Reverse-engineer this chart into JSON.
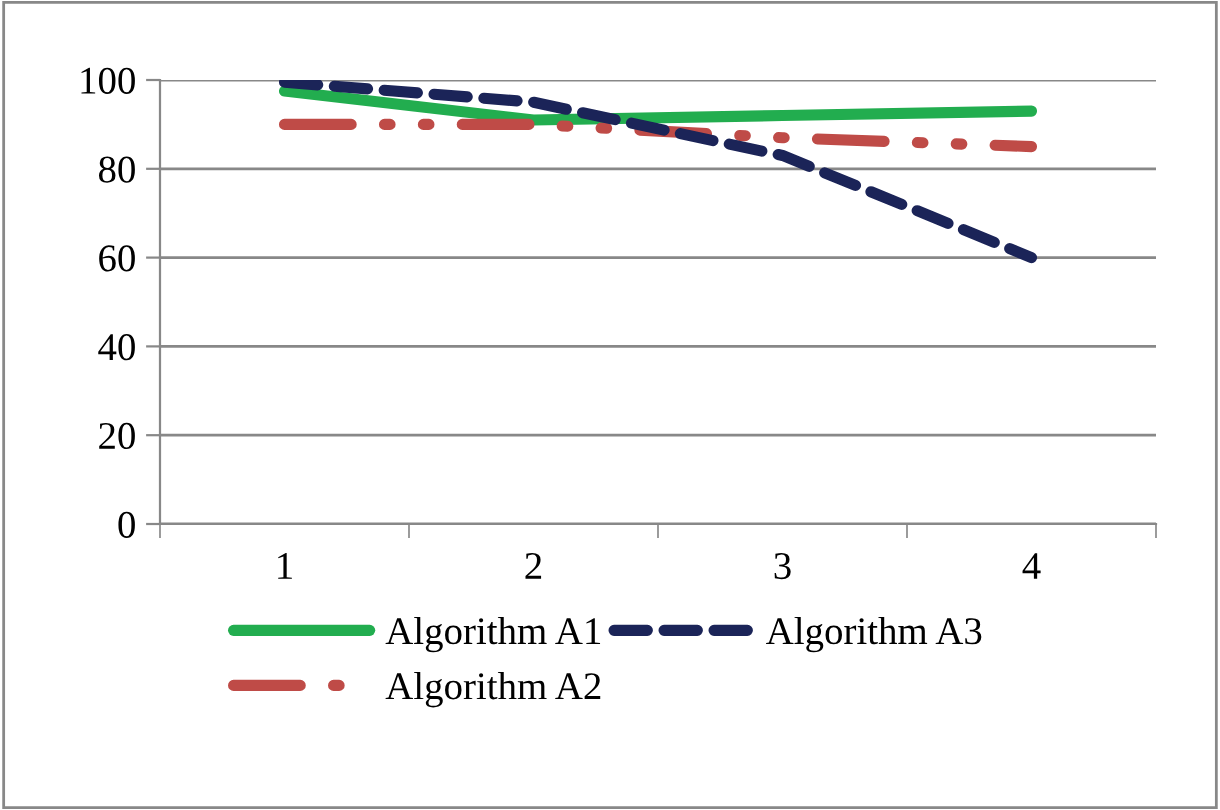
{
  "chart_data": {
    "type": "line",
    "categories": [
      "1",
      "2",
      "3",
      "4"
    ],
    "series": [
      {
        "name": "Algorithm A1",
        "color": "#22ad4f",
        "line_style": "solid",
        "values": [
          97.5,
          91,
          92,
          93
        ]
      },
      {
        "name": "Algorithm A2",
        "color": "#bf4b47",
        "line_style": "dashdot",
        "values": [
          90,
          90,
          87,
          85
        ]
      },
      {
        "name": "Algorithm A3",
        "color": "#1b2458",
        "line_style": "dashed",
        "values": [
          99.5,
          95,
          83,
          60
        ]
      }
    ],
    "ylim": [
      0,
      100
    ],
    "yticks": [
      0,
      20,
      40,
      60,
      80,
      100
    ],
    "grid": "y",
    "legend": "bottom",
    "marker": "none"
  }
}
